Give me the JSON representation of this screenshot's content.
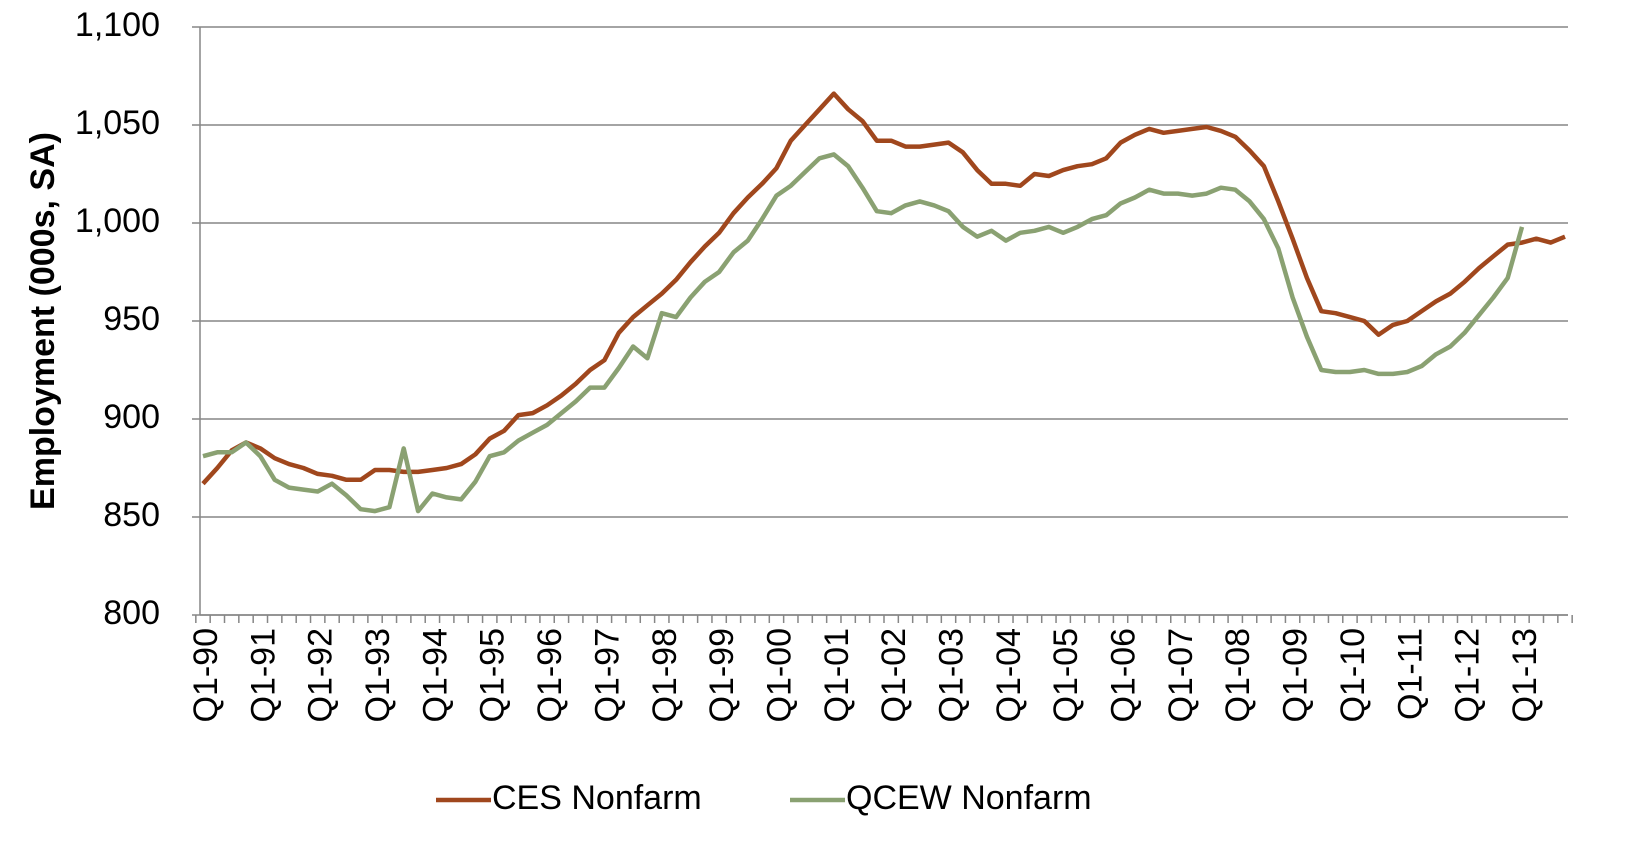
{
  "chart_data": {
    "type": "line",
    "y_label": "Employment (000s, SA)",
    "categories": [
      "Q1-90",
      null,
      null,
      null,
      "Q1-91",
      null,
      null,
      null,
      "Q1-92",
      null,
      null,
      null,
      "Q1-93",
      null,
      null,
      null,
      "Q1-94",
      null,
      null,
      null,
      "Q1-95",
      null,
      null,
      null,
      "Q1-96",
      null,
      null,
      null,
      "Q1-97",
      null,
      null,
      null,
      "Q1-98",
      null,
      null,
      null,
      "Q1-99",
      null,
      null,
      null,
      "Q1-00",
      null,
      null,
      null,
      "Q1-01",
      null,
      null,
      null,
      "Q1-02",
      null,
      null,
      null,
      "Q1-03",
      null,
      null,
      null,
      "Q1-04",
      null,
      null,
      null,
      "Q1-05",
      null,
      null,
      null,
      "Q1-06",
      null,
      null,
      null,
      "Q1-07",
      null,
      null,
      null,
      "Q1-08",
      null,
      null,
      null,
      "Q1-09",
      null,
      null,
      null,
      "Q1-10",
      null,
      null,
      null,
      "Q1-11",
      null,
      null,
      null,
      "Q1-12",
      null,
      null,
      null,
      "Q1-13",
      null,
      null,
      null
    ],
    "series": [
      {
        "name": "CES Nonfarm",
        "color": "#a0471d",
        "values": [
          867,
          875,
          884,
          888,
          885,
          880,
          877,
          875,
          872,
          871,
          869,
          869,
          874,
          874,
          873,
          873,
          874,
          875,
          877,
          882,
          890,
          894,
          902,
          903,
          907,
          912,
          918,
          925,
          930,
          944,
          952,
          958,
          964,
          971,
          980,
          988,
          995,
          1005,
          1013,
          1020,
          1028,
          1042,
          1050,
          1058,
          1066,
          1058,
          1052,
          1042,
          1042,
          1039,
          1039,
          1040,
          1041,
          1036,
          1027,
          1020,
          1020,
          1019,
          1025,
          1024,
          1027,
          1029,
          1030,
          1033,
          1041,
          1045,
          1048,
          1046,
          1047,
          1048,
          1049,
          1047,
          1044,
          1037,
          1029,
          1011,
          992,
          972,
          955,
          954,
          952,
          950,
          943,
          948,
          950,
          955,
          960,
          964,
          970,
          977,
          983,
          989,
          990,
          992,
          990,
          993
        ]
      },
      {
        "name": "QCEW Nonfarm",
        "color": "#8aa172",
        "values": [
          881,
          883,
          883,
          888,
          881,
          869,
          865,
          864,
          863,
          867,
          861,
          854,
          853,
          855,
          885,
          853,
          862,
          860,
          859,
          868,
          881,
          883,
          889,
          893,
          897,
          903,
          909,
          916,
          916,
          926,
          937,
          931,
          954,
          952,
          962,
          970,
          975,
          985,
          991,
          1002,
          1014,
          1019,
          1026,
          1033,
          1035,
          1029,
          1018,
          1006,
          1005,
          1009,
          1011,
          1009,
          1006,
          998,
          993,
          996,
          991,
          995,
          996,
          998,
          995,
          998,
          1002,
          1004,
          1010,
          1013,
          1017,
          1015,
          1015,
          1014,
          1015,
          1018,
          1017,
          1011,
          1002,
          987,
          962,
          942,
          925,
          924,
          924,
          925,
          923,
          923,
          924,
          927,
          933,
          937,
          944,
          953,
          962,
          972,
          998,
          null,
          null,
          null
        ]
      }
    ],
    "ylim": [
      800,
      1100
    ],
    "yticks": [
      800,
      850,
      900,
      950,
      {
        "value": 1000,
        "label": "1,000"
      },
      {
        "value": 1050,
        "label": "1,050"
      },
      {
        "value": 1100,
        "label": "1,100"
      }
    ],
    "grid": true,
    "legend": "bottom"
  }
}
